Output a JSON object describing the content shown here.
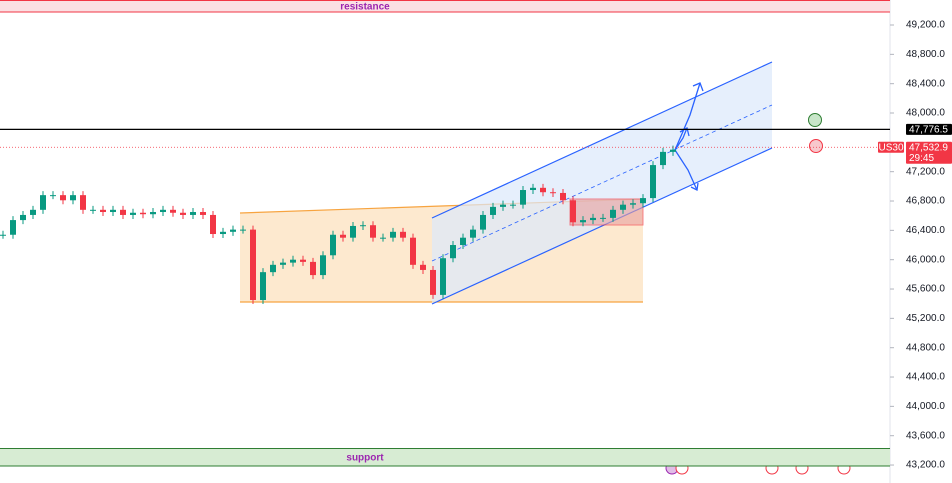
{
  "chart_data": {
    "type": "candlestick",
    "symbol": "US30",
    "countdown": "29:45",
    "closes": [
      46340,
      46540,
      46610,
      46680,
      46880,
      46880,
      46810,
      46880,
      46680,
      46680,
      46650,
      46680,
      46610,
      46640,
      46620,
      46650,
      46680,
      46640,
      46610,
      46650,
      46610,
      46350,
      46380,
      46410,
      46410,
      45450,
      45830,
      45930,
      45960,
      46000,
      45970,
      45790,
      46060,
      46340,
      46300,
      46460,
      46470,
      46300,
      46300,
      46380,
      46300,
      45930,
      45860,
      45520,
      46020,
      46200,
      46300,
      46410,
      46610,
      46720,
      46750,
      46750,
      46950,
      46980,
      46920,
      46910,
      46810,
      46510,
      46540,
      46570,
      46570,
      46680,
      46750,
      46770,
      46840,
      47290,
      47470,
      47500
    ],
    "up_color": "#089981",
    "down_color": "#f23645",
    "ylim": [
      42955,
      49541
    ],
    "yticks": [
      {
        "value": 43200,
        "label": "43,200.0"
      },
      {
        "value": 43600,
        "label": "43,600.0"
      },
      {
        "value": 44000,
        "label": "44,000.0"
      },
      {
        "value": 44400,
        "label": "44,400.0"
      },
      {
        "value": 44800,
        "label": "44,800.0"
      },
      {
        "value": 45200,
        "label": "45,200.0"
      },
      {
        "value": 45600,
        "label": "45,600.0"
      },
      {
        "value": 46000,
        "label": "46,000.0"
      },
      {
        "value": 46400,
        "label": "46,400.0"
      },
      {
        "value": 46800,
        "label": "46,800.0"
      },
      {
        "value": 47200,
        "label": "47,200.0"
      },
      {
        "value": 48000,
        "label": "48,000.0"
      },
      {
        "value": 48400,
        "label": "48,400.0"
      },
      {
        "value": 48800,
        "label": "48,800.0"
      },
      {
        "value": 49200,
        "label": "49,200.0"
      }
    ],
    "price_lines": [
      {
        "value": 47776.5,
        "label": "47,776.5",
        "color": "#000000",
        "style": "solid"
      },
      {
        "value": 47532.9,
        "label": "47,532.9",
        "color": "#f23645",
        "style": "dotted"
      }
    ],
    "zones": [
      {
        "label": "resistance",
        "from": 49377,
        "to": 49541,
        "color": "#f23645",
        "fill": "#fbe0e3",
        "text_color": "#9c27b0"
      },
      {
        "label": "support",
        "from": 43186,
        "to": 43432,
        "color": "#2e7d32",
        "fill": "#d7ecd3",
        "text_color": "#9c27b0"
      }
    ]
  }
}
